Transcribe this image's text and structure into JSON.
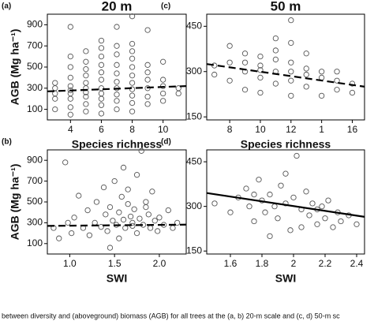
{
  "chart_data": [
    {
      "type": "scatter",
      "label": "(a)",
      "title": "20 m",
      "xlabel": "Species richness",
      "ylabel": "AGB (Mg ha⁻¹)",
      "xlim": [
        2.5,
        11.5
      ],
      "xticks": [
        4,
        6,
        8,
        10
      ],
      "ylim": [
        0,
        1000
      ],
      "yticks": [
        100,
        300,
        500,
        700,
        900
      ],
      "color": "#555555",
      "x": [
        3,
        3,
        3,
        3,
        3,
        4,
        4,
        4,
        4,
        4,
        4,
        4,
        4,
        4,
        4,
        5,
        5,
        5,
        5,
        5,
        5,
        5,
        5,
        5,
        5,
        6,
        6,
        6,
        6,
        6,
        6,
        6,
        6,
        6,
        6,
        6,
        7,
        7,
        7,
        7,
        7,
        7,
        7,
        7,
        7,
        7,
        8,
        8,
        8,
        8,
        8,
        8,
        8,
        8,
        8,
        8,
        8,
        9,
        9,
        9,
        9,
        9,
        9,
        9,
        10,
        10,
        10,
        10,
        10,
        11,
        11
      ],
      "y": [
        100,
        200,
        250,
        300,
        350,
        50,
        120,
        200,
        250,
        280,
        320,
        400,
        500,
        600,
        880,
        80,
        150,
        220,
        260,
        300,
        350,
        420,
        480,
        550,
        650,
        60,
        140,
        200,
        250,
        300,
        380,
        450,
        520,
        600,
        680,
        750,
        100,
        180,
        240,
        300,
        360,
        440,
        520,
        620,
        700,
        880,
        80,
        160,
        230,
        290,
        350,
        420,
        500,
        580,
        650,
        720,
        980,
        150,
        220,
        300,
        380,
        450,
        520,
        850,
        180,
        250,
        320,
        380,
        550,
        250,
        300
      ],
      "trend": {
        "x": [
          2.5,
          11.5
        ],
        "y": [
          270,
          320
        ],
        "dashed": true
      }
    },
    {
      "type": "scatter",
      "label": "(c)",
      "title": "50 m",
      "xlabel": "Species richness",
      "xlim": [
        6.5,
        16.8
      ],
      "xticks": [
        8,
        10,
        12,
        {
          "value": 14,
          "label": "1"
        },
        16
      ],
      "ylim": [
        140,
        490
      ],
      "yticks": [
        150,
        300,
        450
      ],
      "color": "#555555",
      "x": [
        7,
        7,
        8,
        8,
        8,
        9,
        9,
        9,
        9,
        10,
        10,
        10,
        10,
        10,
        11,
        11,
        11,
        11,
        11,
        12,
        12,
        12,
        12,
        12,
        12,
        13,
        13,
        13,
        13,
        14,
        14,
        14,
        15,
        15,
        15,
        16,
        16
      ],
      "y": [
        290,
        320,
        270,
        330,
        385,
        240,
        300,
        330,
        360,
        230,
        280,
        305,
        320,
        350,
        260,
        300,
        340,
        370,
        410,
        220,
        270,
        300,
        330,
        395,
        470,
        250,
        290,
        310,
        360,
        220,
        280,
        300,
        240,
        270,
        300,
        230,
        260
      ],
      "trend": {
        "x": [
          6.5,
          16.8
        ],
        "y": [
          325,
          250
        ],
        "dashed": true
      }
    },
    {
      "type": "scatter",
      "label": "(b)",
      "xlabel": "SWI",
      "ylabel": "AGB (Mg ha⁻¹)",
      "xlim": [
        0.75,
        2.3
      ],
      "xticks": [
        {
          "value": 1,
          "label": "1.0"
        },
        1.5,
        {
          "value": 2,
          "label": "2.0"
        }
      ],
      "ylim": [
        0,
        1000
      ],
      "yticks": [
        100,
        300,
        500,
        700,
        900
      ],
      "color": "#555555",
      "x": [
        0.82,
        0.88,
        0.95,
        0.98,
        1.02,
        1.05,
        1.1,
        1.15,
        1.2,
        1.22,
        1.28,
        1.3,
        1.35,
        1.38,
        1.4,
        1.42,
        1.45,
        1.48,
        1.5,
        1.52,
        1.55,
        1.55,
        1.58,
        1.6,
        1.62,
        1.65,
        1.65,
        1.68,
        1.7,
        1.72,
        1.75,
        1.75,
        1.78,
        1.8,
        1.82,
        1.85,
        1.88,
        1.9,
        1.92,
        1.95,
        1.98,
        2.0,
        2.05,
        2.1,
        2.15,
        2.2,
        1.6,
        1.7,
        1.45,
        1.85
      ],
      "y": [
        250,
        150,
        880,
        300,
        200,
        350,
        560,
        250,
        420,
        180,
        300,
        500,
        260,
        640,
        380,
        220,
        450,
        320,
        700,
        280,
        400,
        150,
        550,
        330,
        250,
        480,
        620,
        360,
        300,
        430,
        200,
        760,
        340,
        990,
        280,
        450,
        380,
        250,
        600,
        320,
        220,
        350,
        280,
        420,
        250,
        300,
        830,
        270,
        60,
        500
      ],
      "trend": {
        "x": [
          0.75,
          2.3
        ],
        "y": [
          270,
          282
        ],
        "dashed": true
      }
    },
    {
      "type": "scatter",
      "label": "(d)",
      "xlabel": "SWI",
      "xlim": [
        1.45,
        2.45
      ],
      "xticks": [
        1.6,
        1.8,
        2.0,
        2.2,
        2.4
      ],
      "ylim": [
        140,
        490
      ],
      "yticks": [
        150,
        300,
        450
      ],
      "color": "#555555",
      "x": [
        1.5,
        1.6,
        1.65,
        1.7,
        1.72,
        1.75,
        1.78,
        1.8,
        1.82,
        1.85,
        1.88,
        1.9,
        1.92,
        1.95,
        1.98,
        2.0,
        2.02,
        2.05,
        2.08,
        2.1,
        2.12,
        2.15,
        2.18,
        2.2,
        2.22,
        2.25,
        2.28,
        2.3,
        2.35,
        2.4,
        1.85,
        1.95,
        2.05,
        1.75,
        2.15
      ],
      "y": [
        310,
        280,
        330,
        360,
        300,
        250,
        390,
        320,
        280,
        340,
        300,
        260,
        370,
        310,
        220,
        330,
        470,
        290,
        350,
        270,
        310,
        240,
        300,
        260,
        320,
        230,
        280,
        250,
        270,
        240,
        200,
        410,
        230,
        340,
        290
      ],
      "trend": {
        "x": [
          1.45,
          2.45
        ],
        "y": [
          345,
          265
        ],
        "dashed": false
      }
    }
  ],
  "caption": "between diversity and (aboveground) biomass (AGB) for all trees at the (a, b) 20-m scale and (c, d) 50-m sc"
}
